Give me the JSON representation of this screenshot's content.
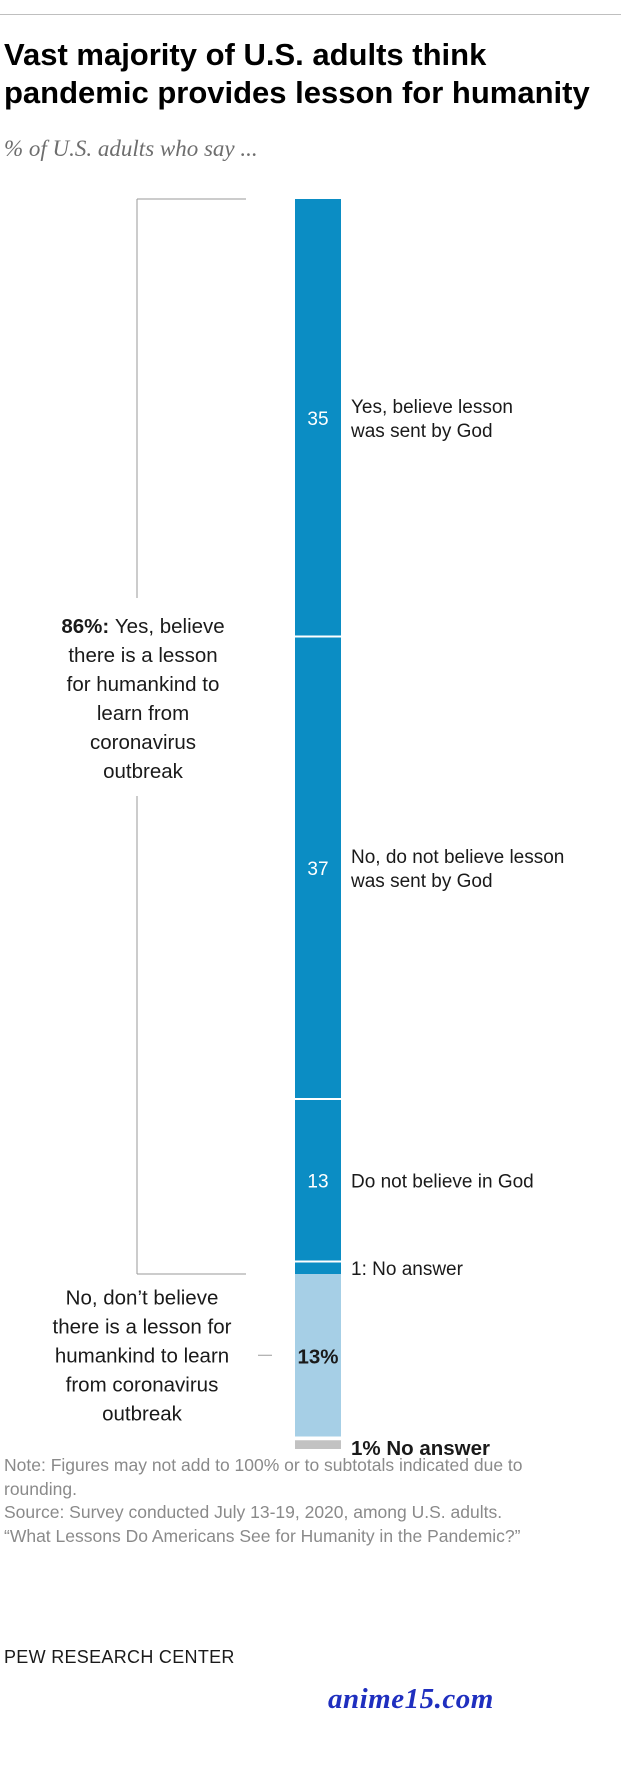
{
  "title": "Vast majority of U.S. adults think pandemic provides lesson for humanity",
  "subtitle": "% of U.S. adults who say ...",
  "chart_data": {
    "type": "bar",
    "orientation": "vertical-stacked",
    "unit": "%",
    "segments": [
      {
        "value": 35,
        "value_label": "35",
        "label": "Yes, believe lesson was sent by God",
        "label_lines": [
          "Yes, believe lesson",
          "was sent by God"
        ],
        "group": "yes",
        "color": "#0b8dc4"
      },
      {
        "value": 37,
        "value_label": "37",
        "label": "No, do not believe lesson was sent by God",
        "label_lines": [
          "No, do not believe lesson",
          "was sent by God"
        ],
        "group": "yes",
        "color": "#0b8dc4"
      },
      {
        "value": 13,
        "value_label": "13",
        "label": "Do not believe in God",
        "label_lines": [
          "Do not believe in God"
        ],
        "group": "yes",
        "color": "#0b8dc4"
      },
      {
        "value": 1,
        "value_label": "",
        "label": "1: No answer",
        "label_lines": [
          "1: No answer"
        ],
        "group": "yes",
        "color": "#0b8dc4"
      },
      {
        "value": 13,
        "value_label": "",
        "label": "No, don't believe there is a lesson for humankind to learn from coronavirus outbreak",
        "group": "no",
        "color": "#a6cfe6"
      },
      {
        "value": 1,
        "value_label": "",
        "label": "No answer",
        "group": "na",
        "color": "#c2c2c2"
      }
    ],
    "groups": {
      "yes": {
        "value": 86,
        "value_label": "86%:",
        "lines": [
          "Yes, believe",
          "there is a lesson",
          "for humankind to",
          "learn from",
          "coronavirus",
          "outbreak"
        ]
      },
      "no": {
        "value": 13,
        "value_label": "13%",
        "lines": [
          "No, don’t believe",
          "there is a lesson for",
          "humankind to learn",
          "from coronavirus",
          "outbreak"
        ]
      },
      "na": {
        "value": 1,
        "value_label": "1% No answer"
      }
    }
  },
  "notes": {
    "note": "Note: Figures may not add to 100% or to subtotals indicated due to rounding.",
    "source": "Source: Survey conducted July 13-19, 2020, among U.S. adults.",
    "report": "“What Lessons Do Americans See for Humanity in the Pandemic?”"
  },
  "source_org": "PEW RESEARCH CENTER",
  "watermark": "anime15.com"
}
